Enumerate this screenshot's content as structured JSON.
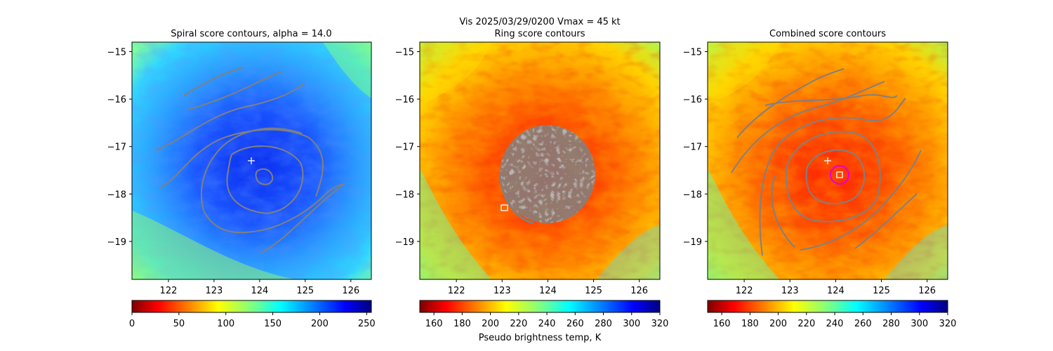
{
  "suptitle_line1": "Vis  2025/03/29/0200    Vmax = 45 kt",
  "chart_data": [
    {
      "type": "heatmap",
      "title": "Spiral score contours, alpha = 14.0",
      "x_ticks": [
        122,
        123,
        124,
        125,
        126
      ],
      "y_ticks": [
        -15,
        -16,
        -17,
        -18,
        -19
      ],
      "xlim": [
        121.2,
        126.45
      ],
      "ylim": [
        -19.8,
        -14.8
      ],
      "colormap": "jet",
      "colorbar": {
        "min": 0,
        "max": 255,
        "ticks": [
          0,
          50,
          100,
          150,
          200,
          250
        ],
        "reversed": true,
        "label": ""
      },
      "marker_plus": {
        "x": 123.8,
        "y": -17.3,
        "color": "#ffffff"
      },
      "contour_color": "#808080",
      "image_palette": "blue"
    },
    {
      "type": "heatmap",
      "title": "Ring score contours",
      "x_ticks": [
        122,
        123,
        124,
        125,
        126
      ],
      "y_ticks": [
        -15,
        -16,
        -17,
        -18,
        -19
      ],
      "xlim": [
        121.2,
        126.45
      ],
      "ylim": [
        -19.8,
        -14.8
      ],
      "colormap": "jet",
      "colorbar": {
        "min": 150,
        "max": 320,
        "ticks": [
          160,
          180,
          200,
          220,
          240,
          260,
          280,
          300,
          320
        ],
        "reversed": true,
        "label": "Pseudo brightness temp, K"
      },
      "marker_square": {
        "x": 123.05,
        "y": -18.3,
        "color": "#ffffff"
      },
      "ring_region": {
        "x": 124.0,
        "y": -17.6
      },
      "contour_color": "#808080",
      "image_palette": "red"
    },
    {
      "type": "heatmap",
      "title": "Combined score contours",
      "x_ticks": [
        122,
        123,
        124,
        125,
        126
      ],
      "y_ticks": [
        -15,
        -16,
        -17,
        -18,
        -19
      ],
      "xlim": [
        121.2,
        126.45
      ],
      "ylim": [
        -19.8,
        -14.8
      ],
      "colormap": "jet",
      "colorbar": {
        "min": 150,
        "max": 320,
        "ticks": [
          160,
          180,
          200,
          220,
          240,
          260,
          280,
          300,
          320
        ],
        "reversed": true,
        "label": ""
      },
      "marker_plus": {
        "x": 123.8,
        "y": -17.3,
        "color": "#ffffff"
      },
      "marker_square": {
        "x": 124.05,
        "y": -17.6,
        "color": "#ffffff"
      },
      "marker_circle": {
        "x": 124.05,
        "y": -17.6,
        "color": "#e000e0"
      },
      "contour_color": "#808080",
      "image_palette": "red"
    }
  ]
}
